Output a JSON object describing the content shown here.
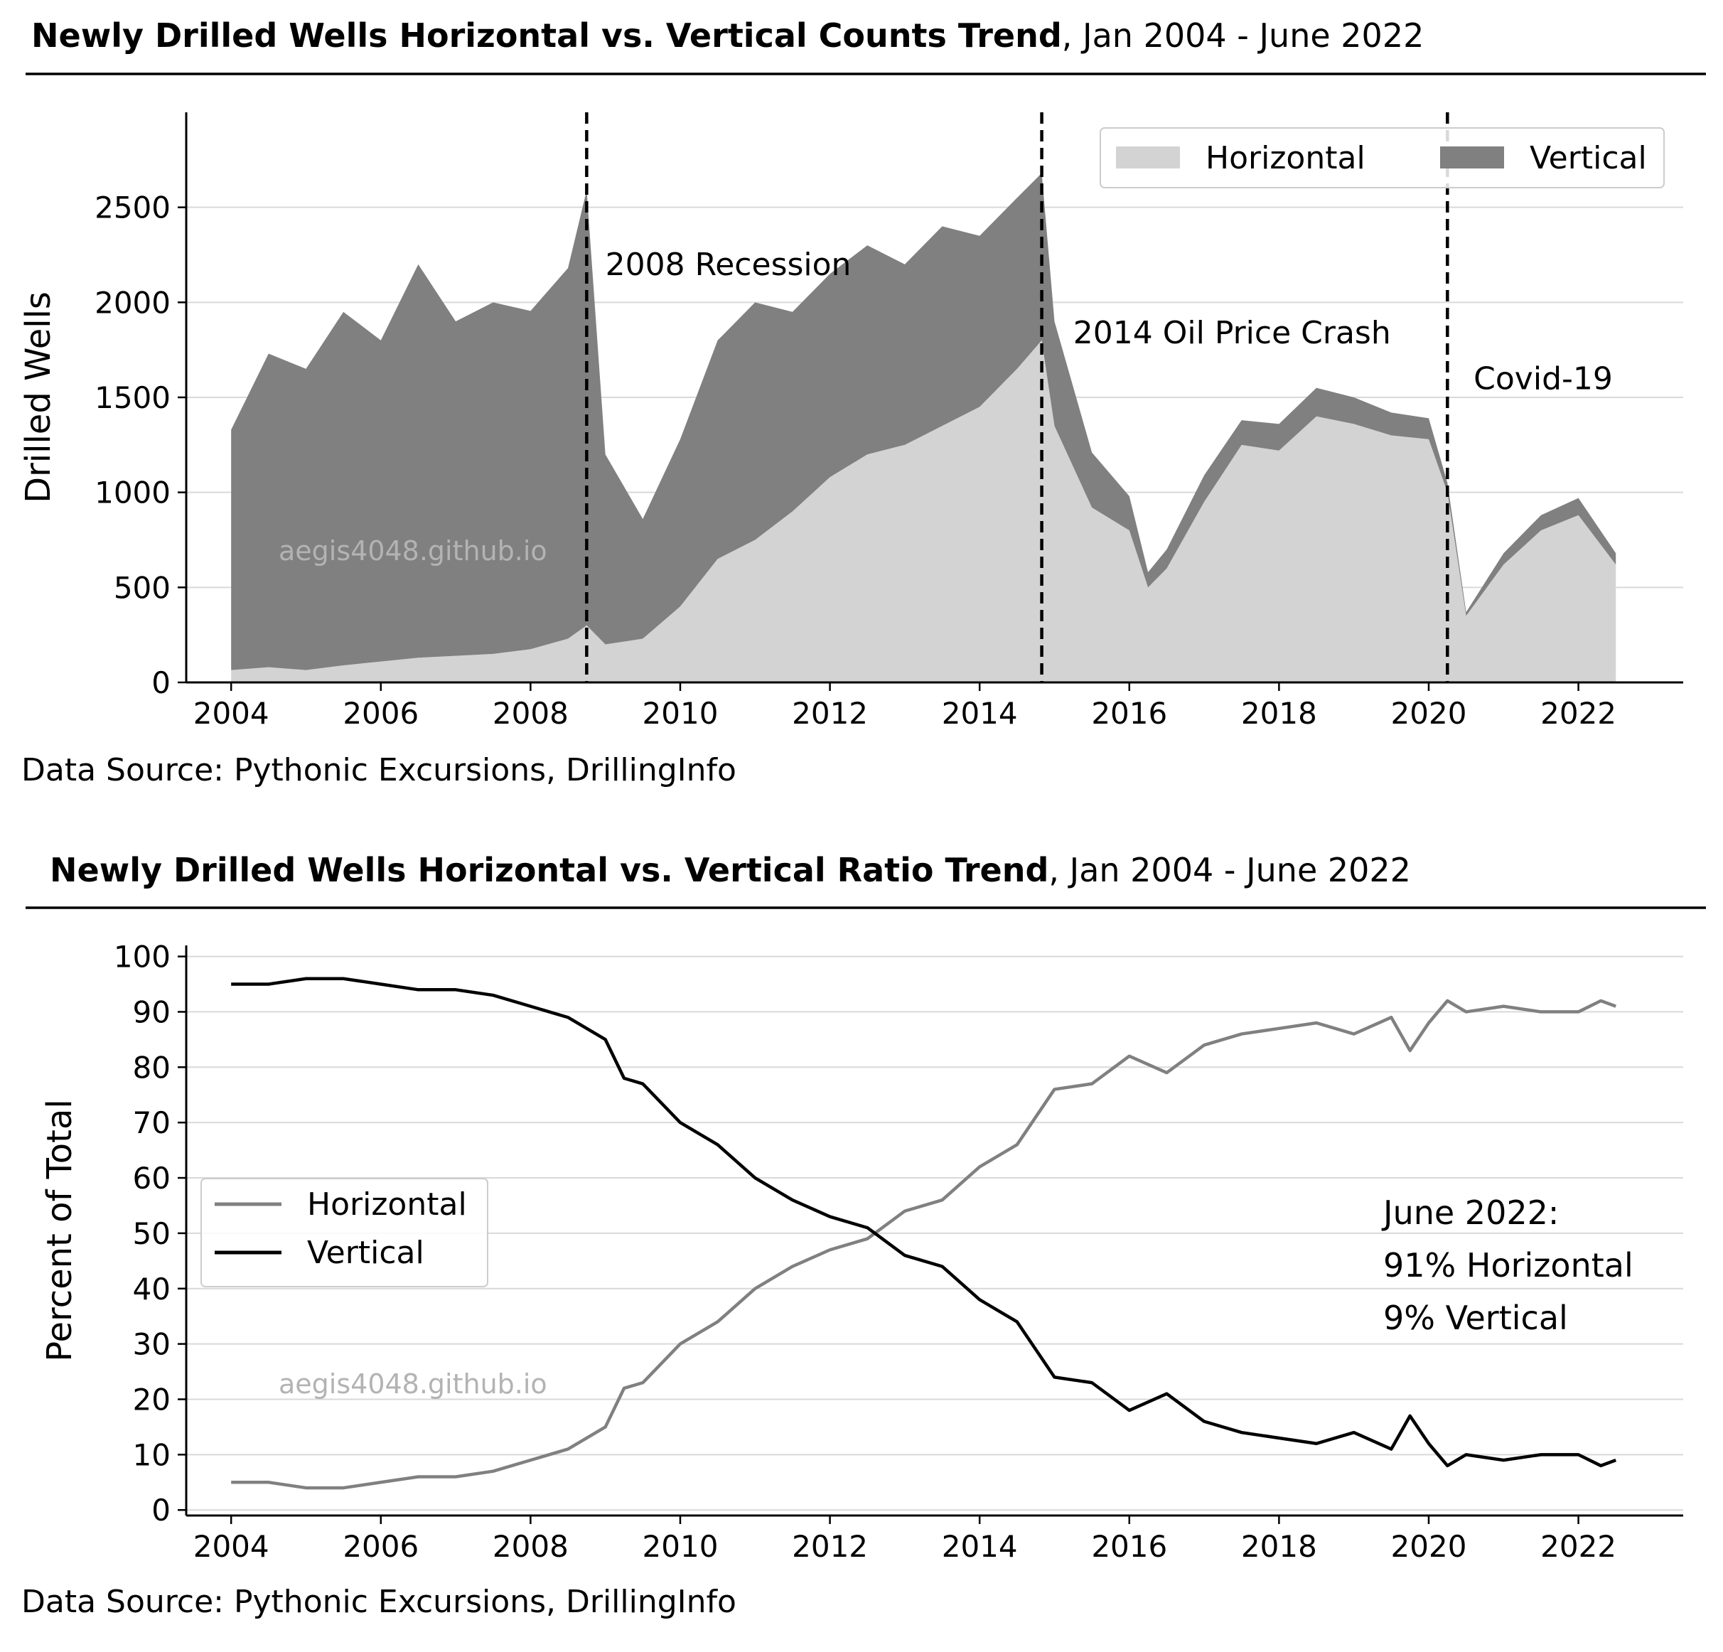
{
  "watermark": "aegis4048.github.io",
  "colors": {
    "horizontal": "#d3d3d3",
    "vertical": "#808080",
    "horizontal_line": "#808080",
    "vertical_line": "#000000",
    "grid": "#d9d9d9",
    "watermark": "#b3b3b3"
  },
  "chart_data": [
    {
      "type": "area",
      "stacked": true,
      "title": "Newly Drilled Wells Horizontal vs.  Vertical Counts Trend",
      "subtitle": ",  Jan 2004 - June 2022",
      "ylabel": "Drilled Wells",
      "xlabel": "",
      "source": "Data Source: Pythonic Excursions, DrillingInfo",
      "xlim": [
        2003.4,
        2023.4
      ],
      "ylim": [
        0,
        3000
      ],
      "xticks": [
        2004,
        2006,
        2008,
        2010,
        2012,
        2014,
        2016,
        2018,
        2020,
        2022
      ],
      "yticks": [
        0,
        500,
        1000,
        1500,
        2000,
        2500
      ],
      "grid": "y",
      "legend": {
        "position": "top-right",
        "entries": [
          "Horizontal",
          "Vertical"
        ]
      },
      "annotations": [
        {
          "x": 2008.75,
          "label": "2008 Recession",
          "label_x": 2009.0,
          "label_y": 2200
        },
        {
          "x": 2014.83,
          "label": "2014 Oil Price Crash",
          "label_x": 2015.25,
          "label_y": 1840
        },
        {
          "x": 2020.25,
          "label": "Covid-19",
          "label_x": 2020.6,
          "label_y": 1600
        }
      ],
      "series": [
        {
          "name": "Horizontal",
          "x": [
            2004.0,
            2004.5,
            2005.0,
            2005.5,
            2006.0,
            2006.5,
            2007.0,
            2007.5,
            2008.0,
            2008.5,
            2008.75,
            2009.0,
            2009.5,
            2010.0,
            2010.5,
            2011.0,
            2011.5,
            2012.0,
            2012.5,
            2013.0,
            2013.5,
            2014.0,
            2014.5,
            2014.83,
            2015.0,
            2015.5,
            2016.0,
            2016.25,
            2016.5,
            2017.0,
            2017.5,
            2018.0,
            2018.5,
            2019.0,
            2019.5,
            2020.0,
            2020.25,
            2020.5,
            2021.0,
            2021.5,
            2022.0,
            2022.5
          ],
          "values": [
            65,
            80,
            65,
            90,
            110,
            130,
            140,
            150,
            175,
            230,
            300,
            200,
            230,
            400,
            650,
            750,
            900,
            1080,
            1200,
            1250,
            1350,
            1450,
            1650,
            1800,
            1350,
            920,
            800,
            500,
            600,
            950,
            1250,
            1220,
            1400,
            1360,
            1300,
            1280,
            1000,
            350,
            620,
            800,
            880,
            620
          ]
        },
        {
          "name": "Vertical",
          "x": [
            2004.0,
            2004.5,
            2005.0,
            2005.5,
            2006.0,
            2006.5,
            2007.0,
            2007.5,
            2008.0,
            2008.5,
            2008.75,
            2009.0,
            2009.5,
            2010.0,
            2010.5,
            2011.0,
            2011.5,
            2012.0,
            2012.5,
            2013.0,
            2013.5,
            2014.0,
            2014.5,
            2014.83,
            2015.0,
            2015.5,
            2016.0,
            2016.25,
            2016.5,
            2017.0,
            2017.5,
            2018.0,
            2018.5,
            2019.0,
            2019.5,
            2020.0,
            2020.25,
            2020.5,
            2021.0,
            2021.5,
            2022.0,
            2022.5
          ],
          "values": [
            1265,
            1650,
            1585,
            1860,
            1690,
            2070,
            1760,
            1850,
            1780,
            1950,
            2290,
            1000,
            630,
            880,
            1150,
            1250,
            1050,
            1070,
            1100,
            950,
            1050,
            900,
            900,
            880,
            550,
            290,
            180,
            80,
            100,
            140,
            130,
            140,
            150,
            140,
            120,
            110,
            50,
            20,
            60,
            80,
            90,
            60
          ]
        }
      ]
    },
    {
      "type": "line",
      "title": "Newly Drilled Wells Horizontal vs.  Vertical Ratio Trend",
      "subtitle": ",  Jan 2004 - June 2022",
      "ylabel": "Percent of Total",
      "xlabel": "",
      "source": "Data Source: Pythonic Excursions, DrillingInfo",
      "xlim": [
        2003.4,
        2023.4
      ],
      "ylim": [
        -1,
        102
      ],
      "xticks": [
        2004,
        2006,
        2008,
        2010,
        2012,
        2014,
        2016,
        2018,
        2020,
        2022
      ],
      "yticks": [
        0,
        10,
        20,
        30,
        40,
        50,
        60,
        70,
        80,
        90,
        100
      ],
      "grid": "y",
      "legend": {
        "position": "center-left",
        "entries": [
          "Horizontal",
          "Vertical"
        ]
      },
      "annotation_lines": [
        "June 2022:",
        "91% Horizontal",
        "9% Vertical"
      ],
      "series": [
        {
          "name": "Horizontal",
          "x": [
            2004.0,
            2004.5,
            2005.0,
            2005.5,
            2006.0,
            2006.5,
            2007.0,
            2007.5,
            2008.0,
            2008.5,
            2009.0,
            2009.25,
            2009.5,
            2010.0,
            2010.5,
            2011.0,
            2011.5,
            2012.0,
            2012.5,
            2013.0,
            2013.5,
            2014.0,
            2014.5,
            2015.0,
            2015.5,
            2016.0,
            2016.5,
            2017.0,
            2017.5,
            2018.0,
            2018.5,
            2019.0,
            2019.5,
            2019.75,
            2020.0,
            2020.25,
            2020.5,
            2021.0,
            2021.5,
            2022.0,
            2022.3,
            2022.5
          ],
          "values": [
            5,
            5,
            4,
            4,
            5,
            6,
            6,
            7,
            9,
            11,
            15,
            22,
            23,
            30,
            34,
            40,
            44,
            47,
            49,
            54,
            56,
            62,
            66,
            76,
            77,
            82,
            79,
            84,
            86,
            87,
            88,
            86,
            89,
            83,
            88,
            92,
            90,
            91,
            90,
            90,
            92,
            91
          ]
        },
        {
          "name": "Vertical",
          "x": [
            2004.0,
            2004.5,
            2005.0,
            2005.5,
            2006.0,
            2006.5,
            2007.0,
            2007.5,
            2008.0,
            2008.5,
            2009.0,
            2009.25,
            2009.5,
            2010.0,
            2010.5,
            2011.0,
            2011.5,
            2012.0,
            2012.5,
            2013.0,
            2013.5,
            2014.0,
            2014.5,
            2015.0,
            2015.5,
            2016.0,
            2016.5,
            2017.0,
            2017.5,
            2018.0,
            2018.5,
            2019.0,
            2019.5,
            2019.75,
            2020.0,
            2020.25,
            2020.5,
            2021.0,
            2021.5,
            2022.0,
            2022.3,
            2022.5
          ],
          "values": [
            95,
            95,
            96,
            96,
            95,
            94,
            94,
            93,
            91,
            89,
            85,
            78,
            77,
            70,
            66,
            60,
            56,
            53,
            51,
            46,
            44,
            38,
            34,
            24,
            23,
            18,
            21,
            16,
            14,
            13,
            12,
            14,
            11,
            17,
            12,
            8,
            10,
            9,
            10,
            10,
            8,
            9
          ]
        }
      ]
    }
  ]
}
